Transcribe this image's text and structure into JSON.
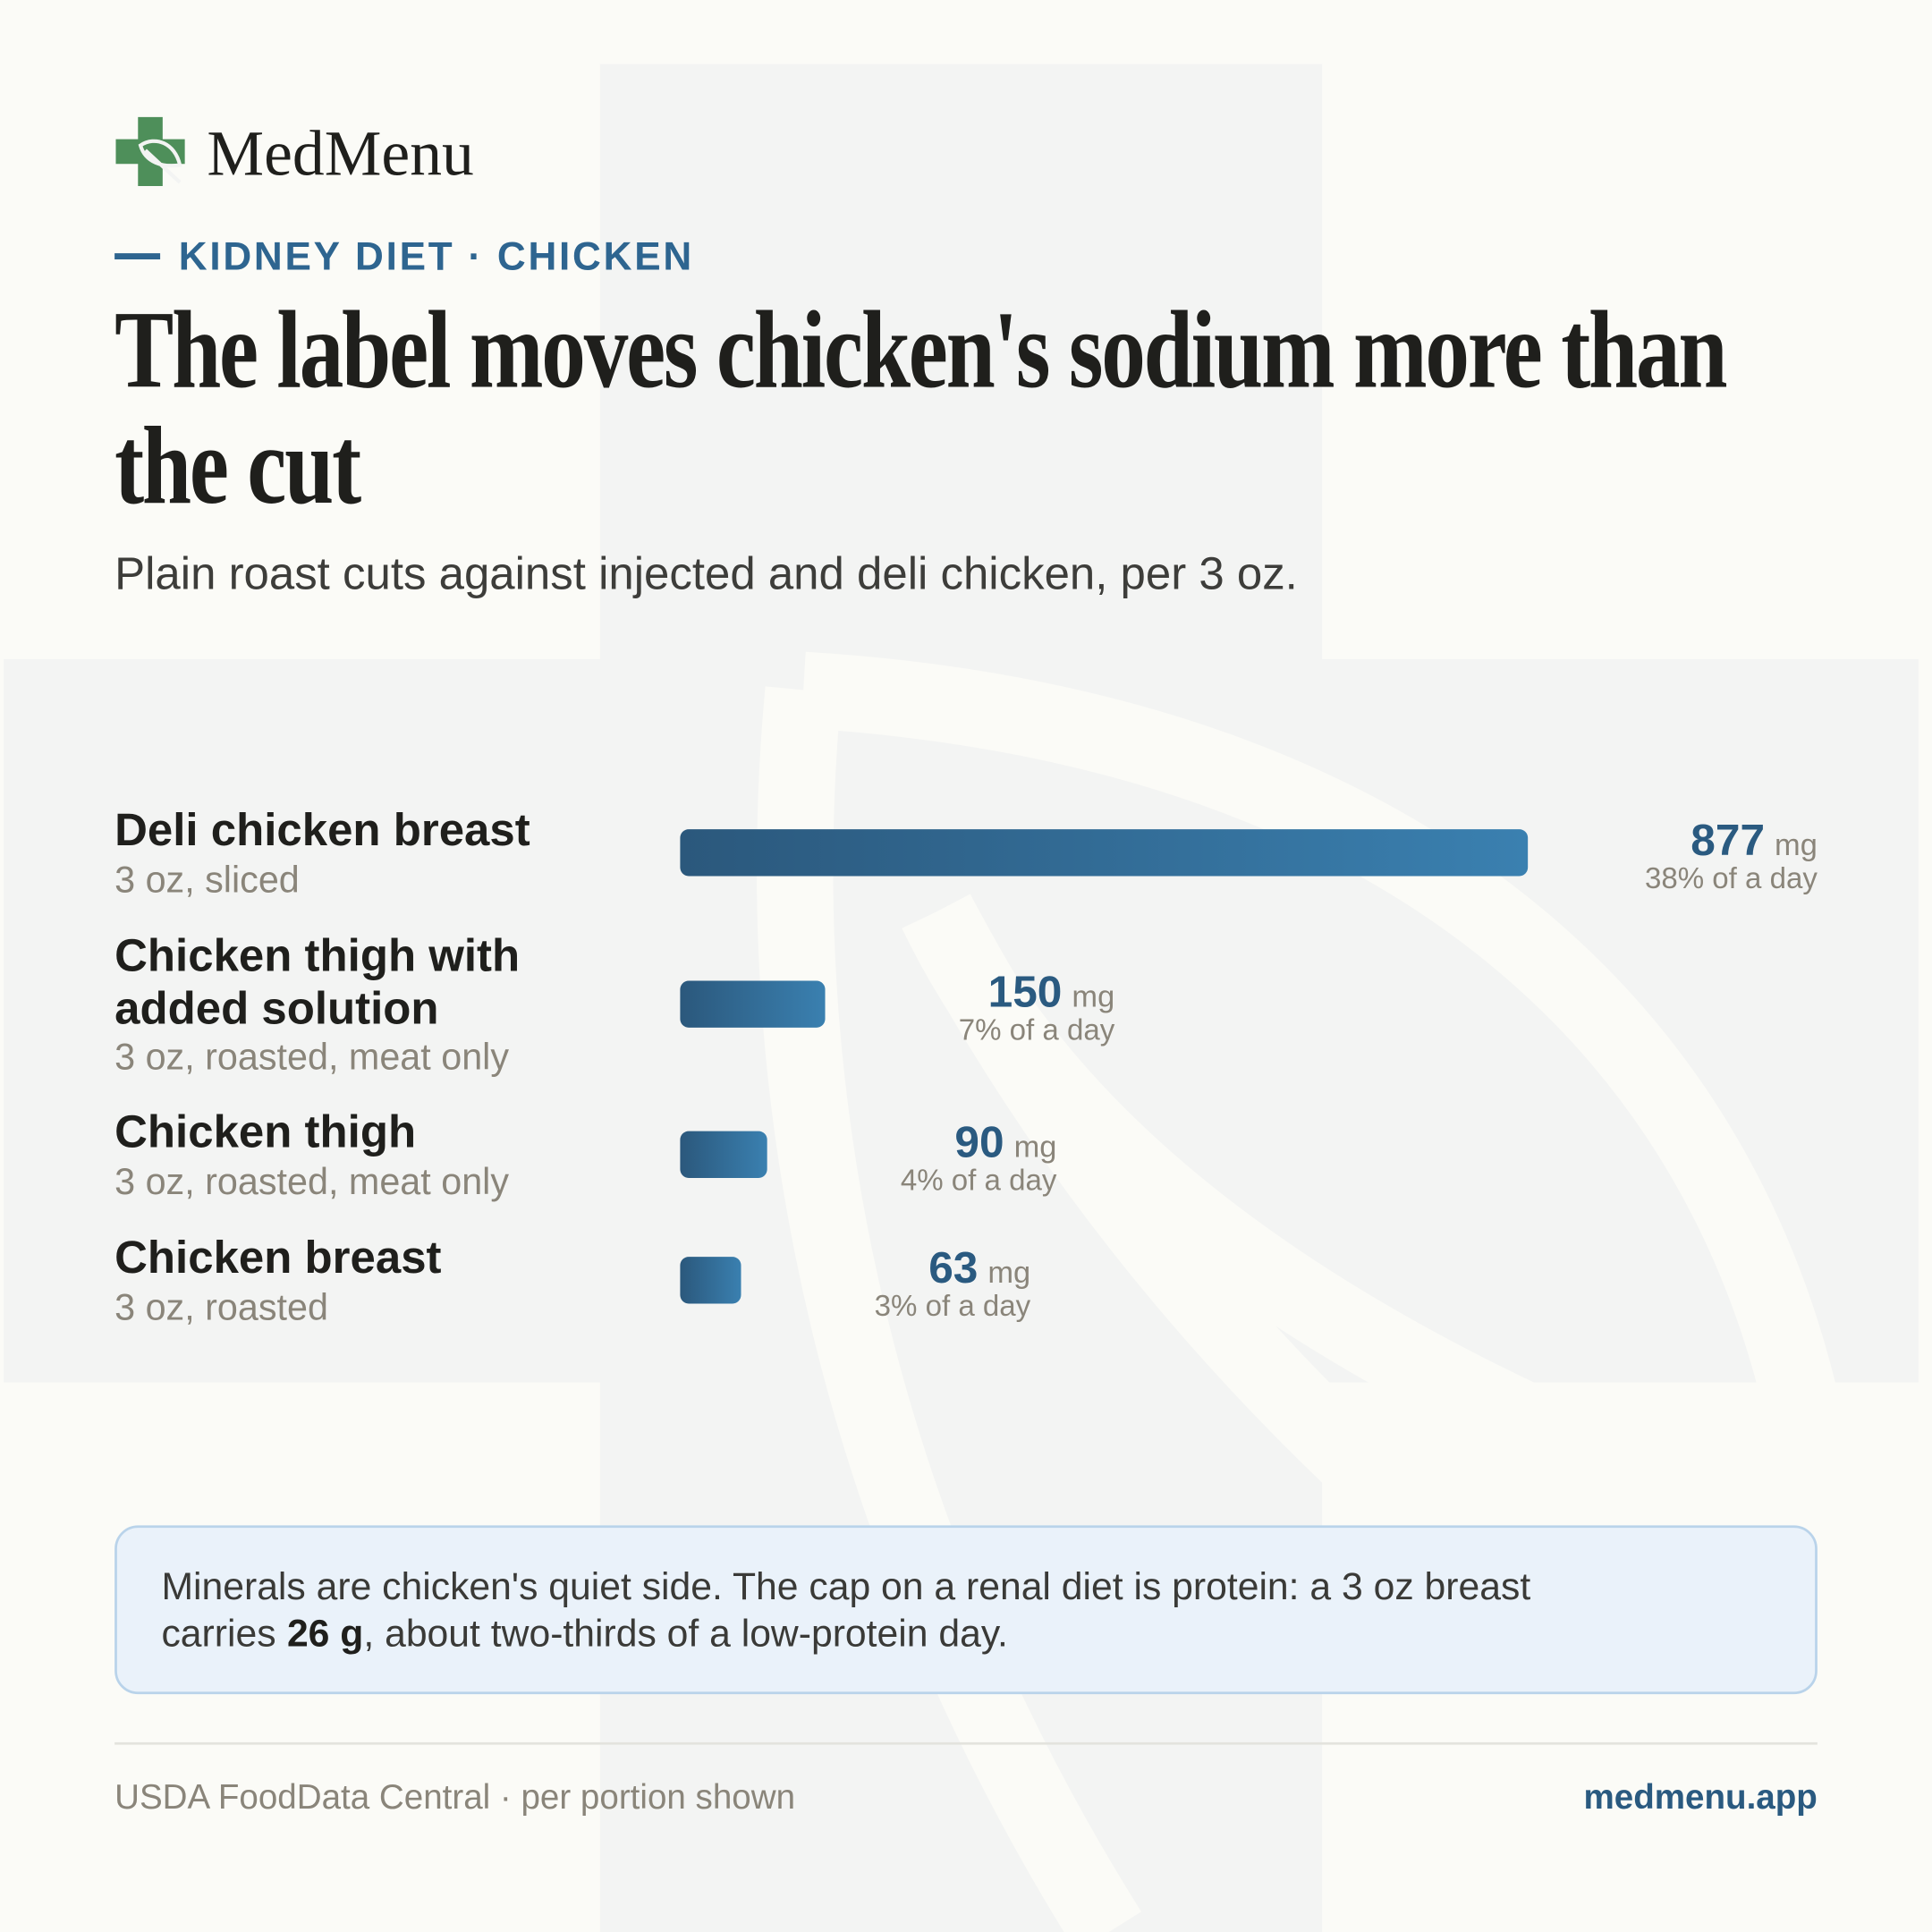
{
  "header": {
    "brand": "MedMenu",
    "kicker": "KIDNEY DIET · CHICKEN"
  },
  "chart_data": {
    "type": "bar",
    "orientation": "horizontal",
    "title": "The label moves chicken's sodium more than the cut",
    "subtitle": "Plain roast cuts against injected and deli chicken, per 3 oz.",
    "categories": [
      "Deli chicken breast",
      "Chicken thigh with added solution",
      "Chicken thigh",
      "Chicken breast"
    ],
    "descriptions": [
      "3 oz, sliced",
      "3 oz, roasted, meat only",
      "3 oz, roasted, meat only",
      "3 oz, roasted"
    ],
    "values": [
      877,
      150,
      90,
      63
    ],
    "unit": "mg",
    "daily_labels": [
      "38% of a day",
      "7% of a day",
      "4% of a day",
      "3% of a day"
    ],
    "gradient": [
      "#2b587c",
      "#3a80b0"
    ]
  },
  "note": {
    "line1": "Minerals are chicken's quiet side. The cap on a renal diet is protein: a 3 oz breast",
    "before": "carries",
    "bold": "26 g",
    "after": ", about two-thirds of a low-protein day."
  },
  "footer": {
    "source": "USDA FoodData Central · per portion shown",
    "site": "medmenu.app"
  }
}
